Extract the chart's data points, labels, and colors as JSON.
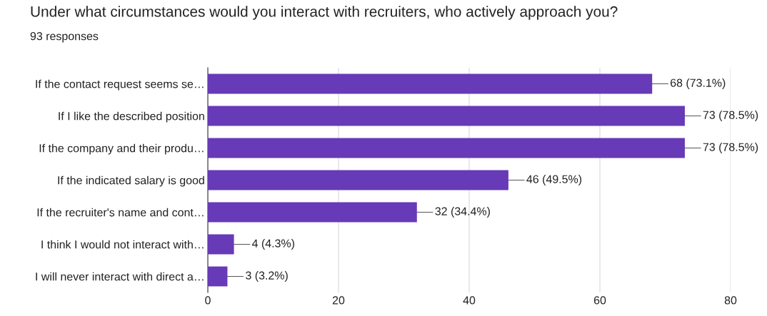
{
  "chart_data": {
    "type": "bar",
    "orientation": "horizontal",
    "title": "Under what circumstances would you interact with recruiters, who actively approach you?",
    "subtitle": "93 responses",
    "categories": [
      "If the contact request seems se…",
      "If I like the described position",
      "If the company and their produ…",
      "If the indicated salary is good",
      "If the recruiter's name and cont…",
      "I think I would not interact with…",
      "I will never interact with direct a…"
    ],
    "values": [
      68,
      73,
      73,
      46,
      32,
      4,
      3
    ],
    "value_labels": [
      "68 (73.1%)",
      "73 (78.5%)",
      "73 (78.5%)",
      "46 (49.5%)",
      "32 (34.4%)",
      "4 (4.3%)",
      "3 (3.2%)"
    ],
    "color": "#673ab7",
    "xlim": [
      0,
      80
    ],
    "xticks": [
      0,
      20,
      40,
      60,
      80
    ],
    "grid": "x",
    "legend": false
  }
}
